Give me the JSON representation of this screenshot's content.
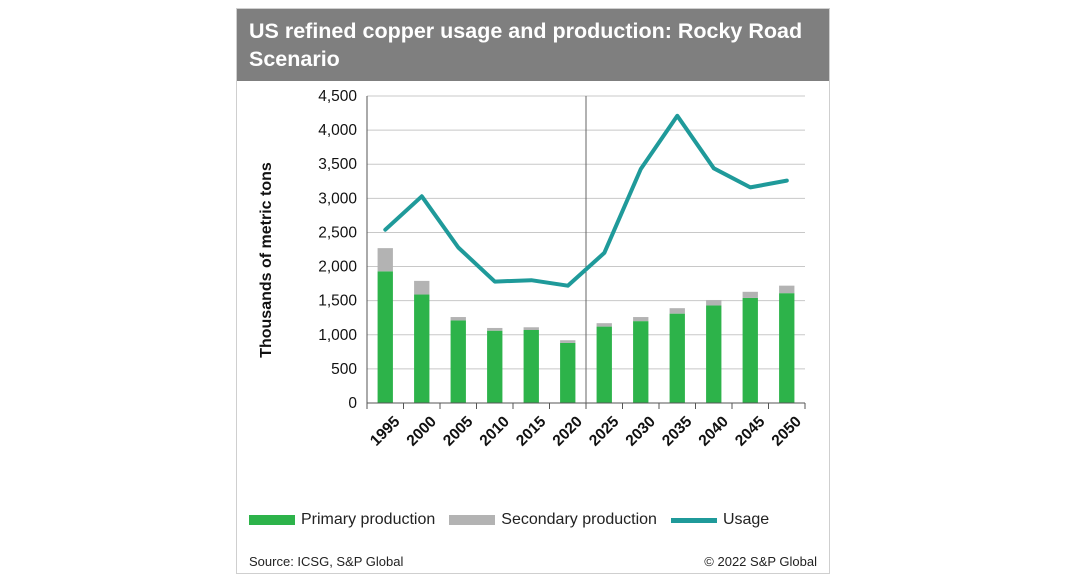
{
  "chart_data": {
    "type": "bar",
    "title": "US refined copper usage and production: Rocky Road Scenario",
    "ylabel": "Thousands of metric tons",
    "xlabel": "",
    "categories": [
      "1995",
      "2000",
      "2005",
      "2010",
      "2015",
      "2020",
      "2025",
      "2030",
      "2035",
      "2040",
      "2045",
      "2050"
    ],
    "yticks": [
      "0",
      "500",
      "1,000",
      "1,500",
      "2,000",
      "2,500",
      "3,000",
      "3,500",
      "4,000",
      "4,500"
    ],
    "ylim": [
      0,
      4500
    ],
    "divider_after_category": "2020",
    "grid": "horizontal",
    "legend_position": "bottom",
    "stacked": true,
    "series": [
      {
        "name": "Primary production",
        "type": "bar",
        "color": "#2db34a",
        "values": [
          1930,
          1590,
          1210,
          1060,
          1070,
          880,
          1120,
          1200,
          1310,
          1430,
          1540,
          1610
        ]
      },
      {
        "name": "Secondary production",
        "type": "bar",
        "color": "#b3b3b3",
        "values": [
          340,
          200,
          50,
          40,
          40,
          40,
          50,
          60,
          80,
          80,
          90,
          110
        ]
      },
      {
        "name": "Usage",
        "type": "line",
        "color": "#1f9a9a",
        "values": [
          2540,
          3030,
          2280,
          1780,
          1800,
          1720,
          2200,
          3430,
          4210,
          3440,
          3160,
          3260
        ]
      }
    ]
  },
  "footer": {
    "source": "Source: ICSG, S&P Global",
    "copyright": "© 2022 S&P Global"
  }
}
